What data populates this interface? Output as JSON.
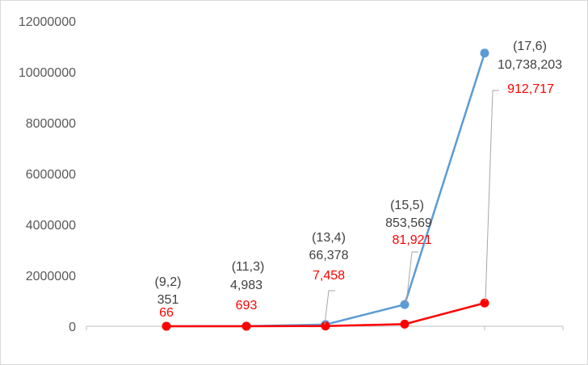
{
  "chart_data": {
    "type": "line",
    "categories": [
      "(9,2)",
      "(11,3)",
      "(13,4)",
      "(15,5)",
      "(17,6)"
    ],
    "ylim": [
      0,
      12000000
    ],
    "yticks": [
      "0",
      "2000000",
      "4000000",
      "6000000",
      "8000000",
      "10000000",
      "12000000"
    ],
    "grid": false,
    "legend": "none",
    "series": [
      {
        "color": "#5b9bd5",
        "values": [
          351,
          4983,
          66378,
          853569,
          10738203
        ],
        "labels": [
          "351",
          "4,983",
          "66,378",
          "853,569",
          "10,738,203"
        ]
      },
      {
        "color": "#ff0000",
        "values": [
          66,
          693,
          7458,
          81921,
          912717
        ],
        "labels": [
          "66",
          "693",
          "7,458",
          "81,921",
          "912,717"
        ]
      }
    ]
  }
}
